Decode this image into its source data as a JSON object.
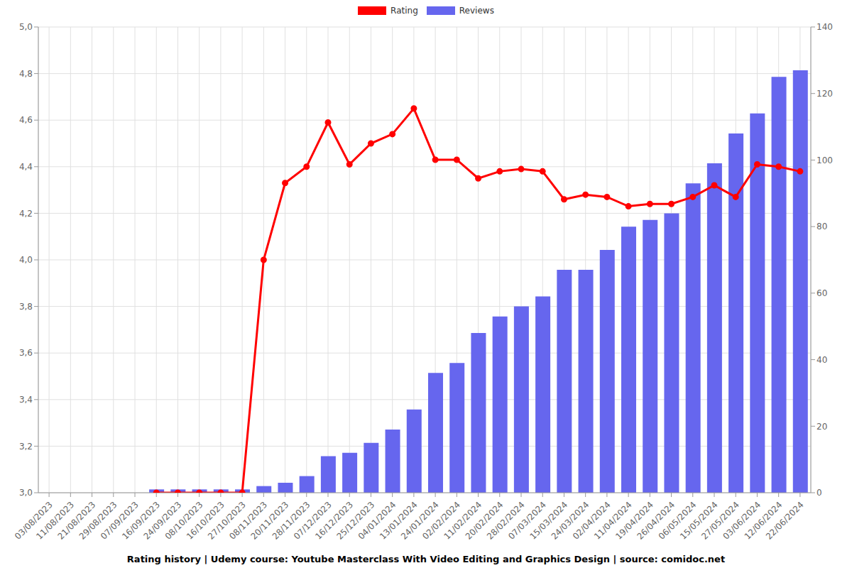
{
  "chart_data": {
    "type": "line",
    "title": "Rating history | Udemy course: Youtube Masterclass With Video Editing and Graphics Design | source: comidoc.net",
    "categories": [
      "03/08/2023",
      "11/08/2023",
      "21/08/2023",
      "29/08/2023",
      "07/09/2023",
      "16/09/2023",
      "24/09/2023",
      "08/10/2023",
      "16/10/2023",
      "27/10/2023",
      "08/11/2023",
      "20/11/2023",
      "28/11/2023",
      "07/12/2023",
      "16/12/2023",
      "25/12/2023",
      "04/01/2024",
      "13/01/2024",
      "24/01/2024",
      "02/02/2024",
      "11/02/2024",
      "20/02/2024",
      "28/02/2024",
      "07/03/2024",
      "15/03/2024",
      "24/03/2024",
      "02/04/2024",
      "11/04/2024",
      "19/04/2024",
      "26/04/2024",
      "06/05/2024",
      "15/05/2024",
      "27/05/2024",
      "03/06/2024",
      "12/06/2024",
      "22/06/2024"
    ],
    "series": [
      {
        "name": "Rating",
        "type": "line",
        "color": "#ff0000",
        "marker": "circle",
        "values": [
          null,
          null,
          null,
          null,
          null,
          3.0,
          3.0,
          3.0,
          3.0,
          3.0,
          4.0,
          4.33,
          4.4,
          4.59,
          4.41,
          4.5,
          4.54,
          4.65,
          4.43,
          4.43,
          4.35,
          4.38,
          4.39,
          4.38,
          4.26,
          4.28,
          4.27,
          4.23,
          4.24,
          4.24,
          4.27,
          4.32,
          4.27,
          4.41,
          4.4,
          4.38
        ]
      },
      {
        "name": "Reviews",
        "type": "bar",
        "axis": "y2",
        "color": "#6666ee",
        "values": [
          null,
          null,
          null,
          null,
          null,
          1,
          1,
          1,
          1,
          1,
          2,
          3,
          5,
          11,
          12,
          15,
          19,
          25,
          36,
          39,
          48,
          53,
          56,
          59,
          67,
          67,
          73,
          80,
          82,
          84,
          93,
          99,
          108,
          114,
          125,
          127
        ]
      }
    ],
    "ylim": [
      3.0,
      5.0
    ],
    "yticks": [
      {
        "value": 3.0,
        "label": "3,0"
      },
      {
        "value": 3.2,
        "label": "3,2"
      },
      {
        "value": 3.4,
        "label": "3,4"
      },
      {
        "value": 3.6,
        "label": "3,6"
      },
      {
        "value": 3.8,
        "label": "3,8"
      },
      {
        "value": 4.0,
        "label": "4,0"
      },
      {
        "value": 4.2,
        "label": "4,2"
      },
      {
        "value": 4.4,
        "label": "4,4"
      },
      {
        "value": 4.6,
        "label": "4,6"
      },
      {
        "value": 4.8,
        "label": "4,8"
      },
      {
        "value": 5.0,
        "label": "5,0"
      }
    ],
    "y2lim": [
      0,
      140
    ],
    "y2ticks": [
      0,
      20,
      40,
      60,
      80,
      100,
      120,
      140
    ],
    "grid": true,
    "legend": "top"
  }
}
